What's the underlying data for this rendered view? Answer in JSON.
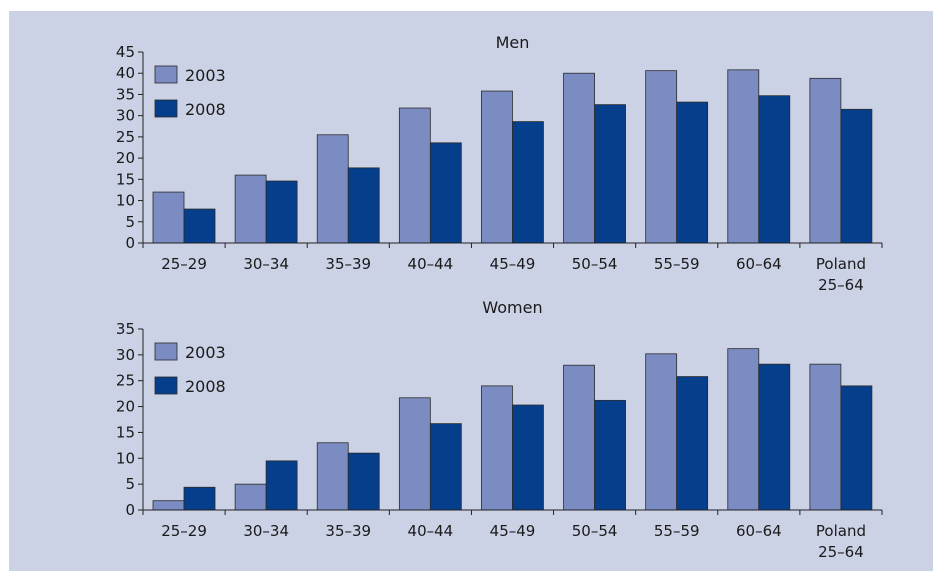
{
  "chart_data": [
    {
      "type": "bar",
      "title": "Men",
      "categories": [
        "25–29",
        "30–34",
        "35–39",
        "40–44",
        "45–49",
        "50–54",
        "55–59",
        "60–64",
        [
          "Poland",
          "25–64"
        ]
      ],
      "series": [
        {
          "name": "2003",
          "color": "#7b8cc3",
          "values": [
            12,
            16,
            25.5,
            31.8,
            35.8,
            40,
            40.6,
            40.8,
            38.8
          ]
        },
        {
          "name": "2008",
          "color": "#053e8b",
          "values": [
            8,
            14.6,
            17.7,
            23.6,
            28.6,
            32.6,
            33.2,
            34.7,
            31.5
          ]
        }
      ],
      "ylim": [
        0,
        45
      ],
      "yticks": [
        0,
        5,
        10,
        15,
        20,
        25,
        30,
        35,
        40,
        45
      ],
      "legend_position": "top-left"
    },
    {
      "type": "bar",
      "title": "Women",
      "categories": [
        "25–29",
        "30–34",
        "35–39",
        "40–44",
        "45–49",
        "50–54",
        "55–59",
        "60–64",
        [
          "Poland",
          "25–64"
        ]
      ],
      "series": [
        {
          "name": "2003",
          "color": "#7b8cc3",
          "values": [
            1.8,
            5,
            13,
            21.7,
            24,
            28,
            30.2,
            31.2,
            28.2
          ]
        },
        {
          "name": "2008",
          "color": "#053e8b",
          "values": [
            4.4,
            9.5,
            11,
            16.7,
            20.3,
            21.2,
            25.8,
            28.2,
            24
          ]
        }
      ],
      "ylim": [
        0,
        35
      ],
      "yticks": [
        0,
        5,
        10,
        15,
        20,
        25,
        30,
        35
      ],
      "legend_position": "top-left"
    }
  ]
}
